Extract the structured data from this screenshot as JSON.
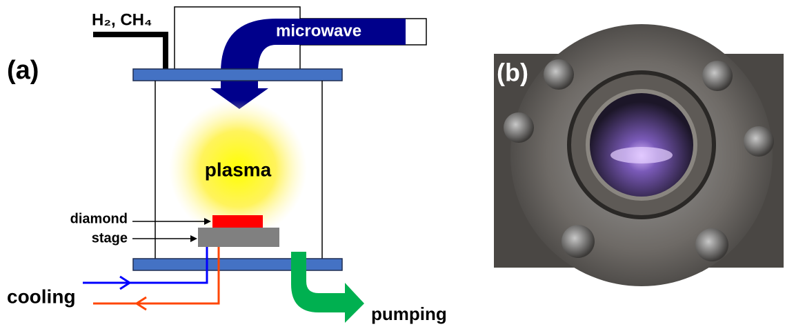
{
  "panel_a": {
    "label": "(a)",
    "gas": "H₂, CH₄",
    "microwave": "microwave",
    "plasma": "plasma",
    "diamond": "diamond",
    "stage": "stage",
    "cooling": "cooling",
    "pumping": "pumping"
  },
  "panel_b": {
    "label": "(b)"
  }
}
